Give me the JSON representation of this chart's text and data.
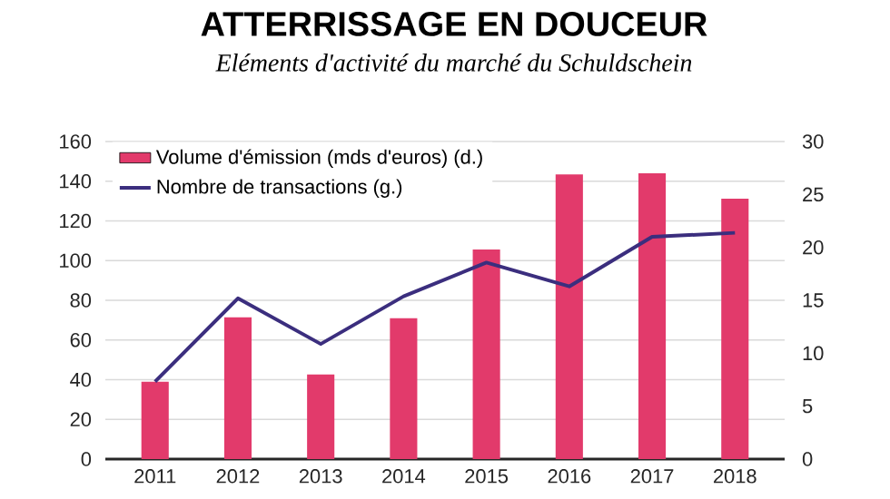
{
  "chart_data": {
    "type": "bar",
    "title": "ATTERRISSAGE EN DOUCEUR",
    "subtitle": "Eléments d'activité du marché du Schuldschein",
    "categories": [
      "2011",
      "2012",
      "2013",
      "2014",
      "2015",
      "2016",
      "2017",
      "2018"
    ],
    "series": [
      {
        "name": "Volume d'émission (mds d'euros) (d.)",
        "axis": "y2",
        "color": "#e23a6b",
        "values": [
          7.3,
          13.4,
          8.0,
          13.3,
          19.8,
          26.9,
          27.0,
          24.6
        ]
      },
      {
        "name": "Nombre de transactions (g.)",
        "type": "line",
        "axis": "y",
        "color": "#3b2e7e",
        "values": [
          39,
          81,
          58,
          82,
          99,
          87,
          112,
          114
        ]
      }
    ],
    "ylim": [
      0,
      160
    ],
    "yticks": [
      0,
      20,
      40,
      60,
      80,
      100,
      120,
      140,
      160
    ],
    "y2lim": [
      0,
      30
    ],
    "y2ticks": [
      0,
      5,
      10,
      15,
      20,
      25,
      30
    ],
    "grid": "y",
    "legend": "top left",
    "marker": "none",
    "line_style": "solid"
  }
}
